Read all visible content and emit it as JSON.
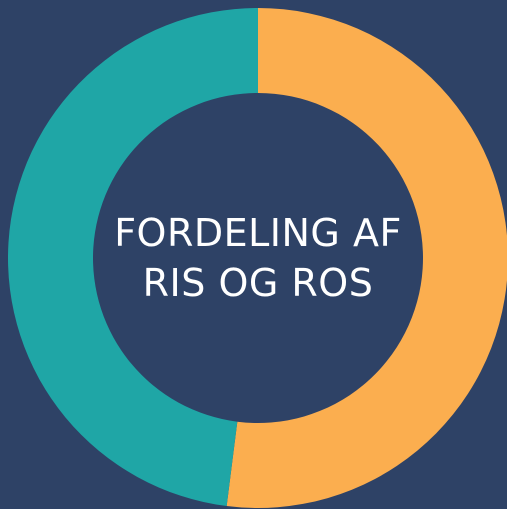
{
  "chart_data": {
    "type": "donut",
    "title": "FORDELING AF RIS OG ROS",
    "values": [
      52,
      48
    ],
    "colors": [
      "#fbae4f",
      "#1fa6a6"
    ],
    "background": "#2e4266"
  }
}
